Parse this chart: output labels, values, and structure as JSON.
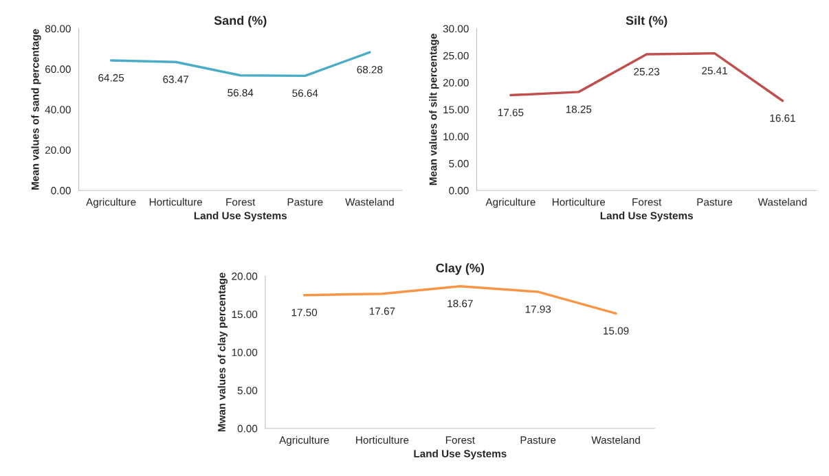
{
  "chart_data": [
    {
      "type": "line",
      "title": "Sand (%)",
      "xlabel": "Land Use Systems",
      "ylabel": "Mean values of sand percentage",
      "categories": [
        "Agriculture",
        "Horticulture",
        "Forest",
        "Pasture",
        "Wasteland"
      ],
      "series": [
        {
          "color": "#4bacc6",
          "values": [
            64.25,
            63.47,
            56.84,
            56.64,
            68.28
          ],
          "value_labels": [
            "64.25",
            "63.47",
            "56.84",
            "56.64",
            "68.28"
          ]
        }
      ],
      "ylim": [
        0,
        80
      ],
      "yticks": [
        {
          "value": 0,
          "label": "0.00"
        },
        {
          "value": 20,
          "label": "20.00"
        },
        {
          "value": 40,
          "label": "40.00"
        },
        {
          "value": 60,
          "label": "60.00"
        },
        {
          "value": 80,
          "label": "80.00"
        }
      ],
      "marker": "none",
      "line_style": "solid"
    },
    {
      "type": "line",
      "title": "Silt (%)",
      "xlabel": "Land Use Systems",
      "ylabel": "Mean values of silt percentage",
      "categories": [
        "Agriculture",
        "Horticulture",
        "Forest",
        "Pasture",
        "Wasteland"
      ],
      "series": [
        {
          "color": "#c0504d",
          "values": [
            17.65,
            18.25,
            25.23,
            25.41,
            16.61
          ],
          "value_labels": [
            "17.65",
            "18.25",
            "25.23",
            "25.41",
            "16.61"
          ]
        }
      ],
      "ylim": [
        0,
        30
      ],
      "yticks": [
        {
          "value": 0,
          "label": "0.00"
        },
        {
          "value": 5,
          "label": "5.00"
        },
        {
          "value": 10,
          "label": "10.00"
        },
        {
          "value": 15,
          "label": "15.00"
        },
        {
          "value": 20,
          "label": "20.00"
        },
        {
          "value": 25,
          "label": "25.00"
        },
        {
          "value": 30,
          "label": "30.00"
        }
      ],
      "marker": "none",
      "line_style": "solid"
    },
    {
      "type": "line",
      "title": "Clay (%)",
      "xlabel": "Land Use Systems",
      "ylabel": "Mwan values of clay percentage",
      "categories": [
        "Agriculture",
        "Horticulture",
        "Forest",
        "Pasture",
        "Wasteland"
      ],
      "series": [
        {
          "color": "#f79646",
          "values": [
            17.5,
            17.67,
            18.67,
            17.93,
            15.09
          ],
          "value_labels": [
            "17.50",
            "17.67",
            "18.67",
            "17.93",
            "15.09"
          ]
        }
      ],
      "ylim": [
        0,
        20
      ],
      "yticks": [
        {
          "value": 0,
          "label": "0.00"
        },
        {
          "value": 5,
          "label": "5.00"
        },
        {
          "value": 10,
          "label": "10.00"
        },
        {
          "value": 15,
          "label": "15.00"
        },
        {
          "value": 20,
          "label": "20.00"
        }
      ],
      "marker": "none",
      "line_style": "solid"
    }
  ]
}
